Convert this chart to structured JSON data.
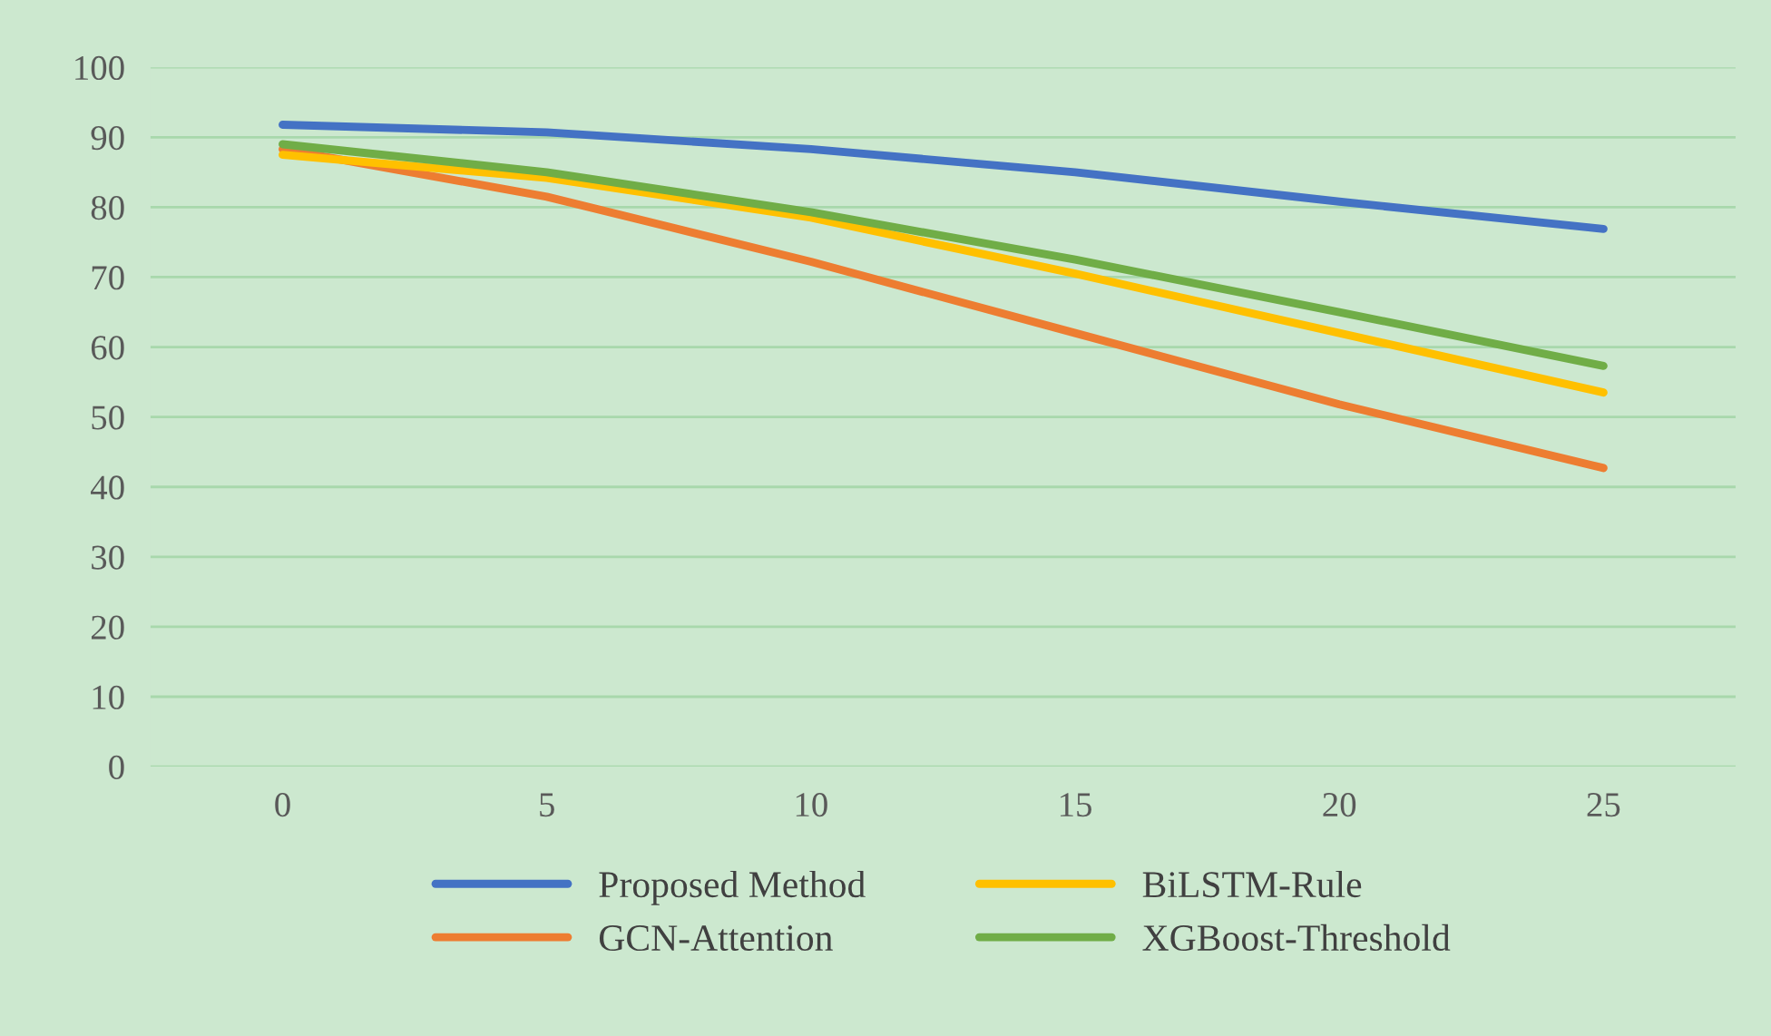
{
  "chart_data": {
    "type": "line",
    "categories": [
      "0",
      "5",
      "10",
      "15",
      "20",
      "25"
    ],
    "series": [
      {
        "name": "Proposed Method",
        "color": "#4472c4",
        "values": [
          91.8,
          90.7,
          88.3,
          85.0,
          80.8,
          76.9
        ]
      },
      {
        "name": "GCN-Attention",
        "color": "#ed7d31",
        "values": [
          88.3,
          81.5,
          72.2,
          62.0,
          51.8,
          42.7
        ]
      },
      {
        "name": "BiLSTM-Rule",
        "color": "#ffc000",
        "values": [
          87.5,
          84.2,
          78.5,
          70.5,
          62.0,
          53.5
        ]
      },
      {
        "name": "XGBoost-Threshold",
        "color": "#70ad47",
        "values": [
          89.0,
          85.0,
          79.3,
          72.5,
          65.0,
          57.3
        ]
      }
    ],
    "ylim": [
      0,
      100
    ],
    "yticks": [
      0,
      10,
      20,
      30,
      40,
      50,
      60,
      70,
      80,
      90,
      100
    ],
    "grid": "y",
    "legend": "bottom",
    "marker": "none",
    "line_style": "solid"
  }
}
